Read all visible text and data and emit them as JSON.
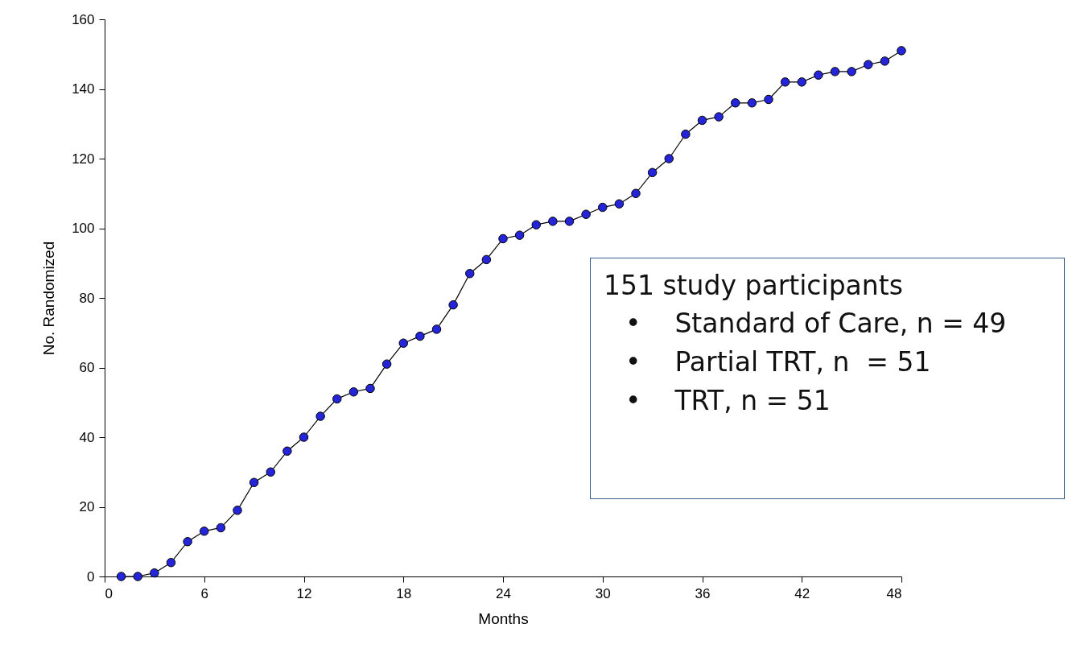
{
  "chart_data": {
    "type": "line",
    "xlabel": "Months",
    "ylabel": "No. Randomized",
    "x": [
      1,
      2,
      3,
      4,
      5,
      6,
      7,
      8,
      9,
      10,
      11,
      12,
      13,
      14,
      15,
      16,
      17,
      18,
      19,
      20,
      21,
      22,
      23,
      24,
      25,
      26,
      27,
      28,
      29,
      30,
      31,
      32,
      33,
      34,
      35,
      36,
      37,
      38,
      39,
      40,
      41,
      42,
      43,
      44,
      45,
      46,
      47,
      48
    ],
    "series": [
      {
        "color": "#2424d8",
        "values": [
          0,
          0,
          1,
          4,
          10,
          13,
          14,
          19,
          27,
          30,
          36,
          40,
          46,
          51,
          53,
          54,
          61,
          67,
          69,
          71,
          78,
          87,
          91,
          97,
          98,
          101,
          102,
          102,
          104,
          106,
          107,
          110,
          116,
          120,
          127,
          131,
          132,
          136,
          136,
          137,
          142,
          142,
          144,
          145,
          145,
          147,
          148,
          151
        ]
      }
    ],
    "xlim": [
      0,
      48
    ],
    "xticks": [
      0,
      6,
      12,
      18,
      24,
      30,
      36,
      42,
      48
    ],
    "ylim": [
      0,
      160
    ],
    "yticks": [
      0,
      20,
      40,
      60,
      80,
      100,
      120,
      140,
      160
    ],
    "marker": "circle",
    "line_style": "solid",
    "grid": false,
    "annotations": [
      "151 study participants",
      "•    Standard of Care, n = 49",
      "•    Partial TRT, n  = 51",
      "•    TRT, n = 51"
    ]
  }
}
